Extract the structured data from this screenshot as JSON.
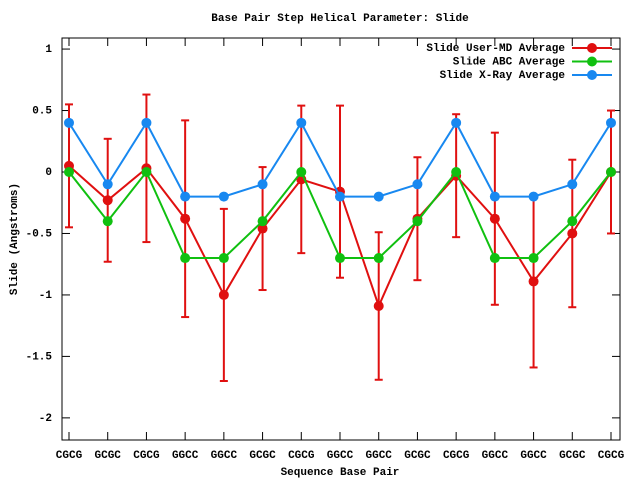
{
  "chart_data": {
    "type": "line",
    "title": "Base Pair Step Helical Parameter: Slide",
    "x_label": "Sequence Base Pair",
    "y_label": "Slide (Angstroms)",
    "categories": [
      "CGCG",
      "GCGC",
      "CGCG",
      "GGCC",
      "GGCC",
      "GCGC",
      "CGCG",
      "GGCC",
      "GGCC",
      "GCGC",
      "CGCG",
      "GGCC",
      "GGCC",
      "GCGC",
      "CGCG"
    ],
    "ylim": [
      -2.18,
      1.09
    ],
    "yticks": [
      -2,
      -1.5,
      -1,
      -0.5,
      0,
      0.5,
      1
    ],
    "legend": "top-right",
    "series": [
      {
        "name": "Slide User-MD Average",
        "color": "#e01010",
        "values": [
          0.05,
          -0.23,
          0.03,
          -0.38,
          -1.0,
          -0.46,
          -0.06,
          -0.16,
          -1.09,
          -0.38,
          -0.03,
          -0.38,
          -0.89,
          -0.5,
          0
        ],
        "errors": [
          0.5,
          0.5,
          0.6,
          0.8,
          0.7,
          0.5,
          0.6,
          0.7,
          0.6,
          0.5,
          0.5,
          0.7,
          0.7,
          0.6,
          0.5
        ]
      },
      {
        "name": "Slide ABC Average",
        "color": "#10c010",
        "values": [
          0,
          -0.4,
          0,
          -0.7,
          -0.7,
          -0.4,
          0,
          -0.7,
          -0.7,
          -0.4,
          0,
          -0.7,
          -0.7,
          -0.4,
          0
        ]
      },
      {
        "name": "Slide X-Ray Average",
        "color": "#1888f0",
        "values": [
          0.4,
          -0.1,
          0.4,
          -0.2,
          -0.2,
          -0.1,
          0.4,
          -0.2,
          -0.2,
          -0.1,
          0.4,
          -0.2,
          -0.2,
          -0.1,
          0.4
        ]
      }
    ]
  }
}
